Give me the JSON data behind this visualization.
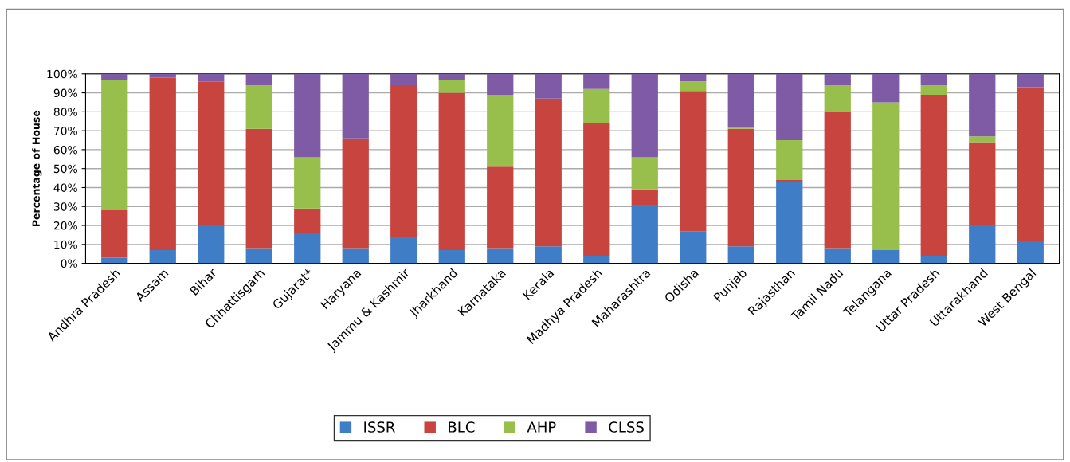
{
  "chart_data": {
    "type": "bar",
    "stacked": true,
    "ylabel": "Percentage of House",
    "categories": [
      "Andhra Pradesh",
      "Assam",
      "Bihar",
      "Chhattisgarh",
      "Gujarat*",
      "Haryana",
      "Jammu & Kashmir",
      "Jharkhand",
      "Karnataka",
      "Kerala",
      "Madhya Pradesh",
      "Maharashtra",
      "Odisha",
      "Punjab",
      "Rajasthan",
      "Tamil Nadu",
      "Telangana",
      "Uttar Pradesh",
      "Uttarakhand",
      "West Bengal"
    ],
    "series": [
      {
        "name": "ISSR",
        "color": "#3f7dc6",
        "values": [
          3,
          7,
          20,
          8,
          16,
          8,
          14,
          7,
          8,
          9,
          4,
          31,
          17,
          9,
          43,
          8,
          7,
          4,
          20,
          12
        ]
      },
      {
        "name": "BLC",
        "color": "#c8443f",
        "values": [
          25,
          91,
          76,
          63,
          13,
          58,
          80,
          83,
          43,
          78,
          70,
          8,
          74,
          62,
          1,
          72,
          0,
          85,
          44,
          81
        ]
      },
      {
        "name": "AHP",
        "color": "#98bf4b",
        "values": [
          69,
          0,
          0,
          23,
          27,
          0,
          0,
          7,
          38,
          0,
          18,
          17,
          5,
          1,
          21,
          14,
          78,
          5,
          3,
          0
        ]
      },
      {
        "name": "CLSS",
        "color": "#7f5ba6",
        "values": [
          3,
          2,
          4,
          6,
          44,
          34,
          6,
          3,
          11,
          13,
          8,
          44,
          4,
          28,
          35,
          6,
          15,
          6,
          33,
          7
        ]
      }
    ],
    "ylim": [
      0,
      100
    ],
    "yticks": [
      {
        "value": 0,
        "label": "0%"
      },
      {
        "value": 10,
        "label": "10%"
      },
      {
        "value": 20,
        "label": "20%"
      },
      {
        "value": 30,
        "label": "30%"
      },
      {
        "value": 40,
        "label": "40%"
      },
      {
        "value": 50,
        "label": "50%"
      },
      {
        "value": 60,
        "label": "60%"
      },
      {
        "value": 70,
        "label": "70%"
      },
      {
        "value": 80,
        "label": "80%"
      },
      {
        "value": 90,
        "label": "90%"
      },
      {
        "value": 100,
        "label": "100%"
      }
    ],
    "grid": "y",
    "legend": "bottom"
  }
}
